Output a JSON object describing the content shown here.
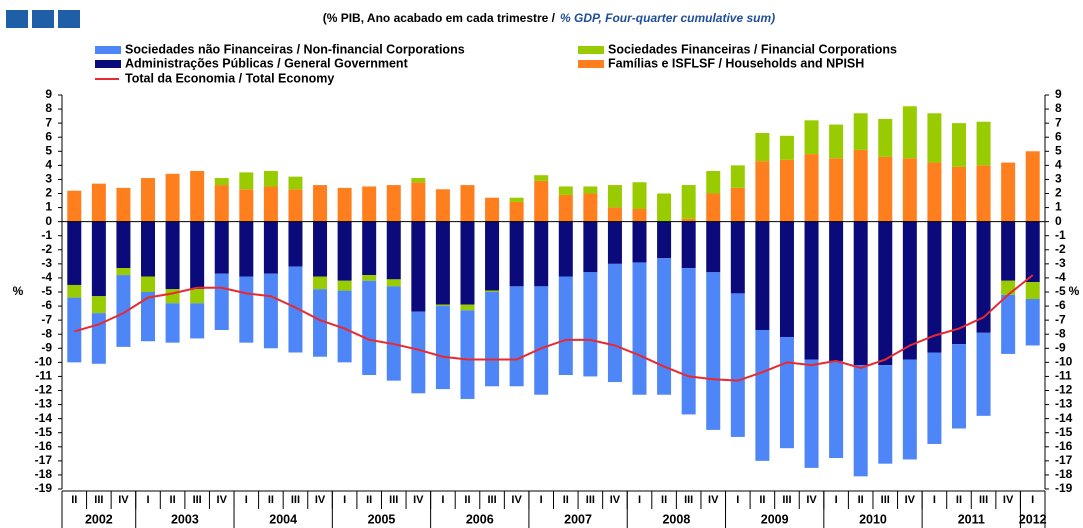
{
  "chart_data": {
    "type": "bar",
    "title": "(% PIB, Ano acabado em cada trimestre  /",
    "subtitle": "% GDP, Four-quarter cumulative sum)",
    "ylabel": "%",
    "y2label": "%",
    "categories": [
      "II",
      "III",
      "IV",
      "I",
      "II",
      "III",
      "IV",
      "I",
      "II",
      "III",
      "IV",
      "I",
      "II",
      "III",
      "IV",
      "I",
      "II",
      "III",
      "IV",
      "I",
      "II",
      "III",
      "IV",
      "I",
      "II",
      "III",
      "IV",
      "I",
      "II",
      "III",
      "IV",
      "I",
      "II",
      "III",
      "IV",
      "I",
      "II",
      "III",
      "IV",
      "I"
    ],
    "years": [
      "2002",
      "2003",
      "2004",
      "2005",
      "2006",
      "2007",
      "2008",
      "2009",
      "2010",
      "2011",
      "2012"
    ],
    "series": [
      {
        "name": "Sociedades não Financeiras / Non-financial Corporations",
        "color": "#4f86f7",
        "values": [
          -4.6,
          -3.6,
          -5.1,
          -3.5,
          -2.8,
          -2.5,
          -4.0,
          -4.7,
          -5.3,
          -6.1,
          -4.8,
          -5.1,
          -6.7,
          -6.7,
          -5.8,
          -5.9,
          -6.3,
          -6.7,
          -7.1,
          -7.7,
          -7.0,
          -7.4,
          -8.4,
          -9.4,
          -9.7,
          -10.4,
          -11.2,
          -10.2,
          -9.3,
          -7.9,
          -7.7,
          -6.9,
          -7.9,
          -7.0,
          -7.1,
          -6.5,
          -6.0,
          -5.9,
          -4.2,
          -3.3
        ]
      },
      {
        "name": "Sociedades Financeiras / Financial Corporations",
        "color": "#99cc00",
        "values": [
          -0.9,
          -1.2,
          -0.5,
          -1.1,
          -1.0,
          -1.0,
          0.5,
          1.2,
          1.1,
          0.9,
          -0.9,
          -0.7,
          -0.4,
          -0.5,
          0.3,
          -0.1,
          -0.4,
          -0.1,
          0.3,
          0.4,
          0.6,
          0.5,
          1.6,
          1.9,
          2.0,
          2.4,
          1.6,
          1.6,
          2.0,
          1.7,
          2.4,
          2.4,
          2.6,
          2.7,
          3.7,
          3.5,
          3.1,
          3.1,
          -1.0,
          -1.2
        ]
      },
      {
        "name": "Administrações Públicas / General Government",
        "color": "#0a0a7a",
        "values": [
          -4.5,
          -5.3,
          -3.3,
          -3.9,
          -4.8,
          -4.8,
          -3.7,
          -3.9,
          -3.7,
          -3.2,
          -3.9,
          -4.2,
          -3.8,
          -4.1,
          -6.4,
          -5.9,
          -5.9,
          -4.9,
          -4.6,
          -4.6,
          -3.9,
          -3.6,
          -3.0,
          -2.9,
          -2.6,
          -3.3,
          -3.6,
          -5.1,
          -7.7,
          -8.2,
          -9.8,
          -9.9,
          -10.2,
          -10.2,
          -9.8,
          -9.3,
          -8.7,
          -7.9,
          -4.2,
          -4.3
        ]
      },
      {
        "name": "Famílias e ISFLSF / Households and NPISH",
        "color": "#ff7f1f",
        "values": [
          2.2,
          2.7,
          2.4,
          3.1,
          3.4,
          3.6,
          2.6,
          2.3,
          2.5,
          2.3,
          2.6,
          2.4,
          2.5,
          2.6,
          2.8,
          2.3,
          2.6,
          1.7,
          1.4,
          2.9,
          1.9,
          2.0,
          1.0,
          0.9,
          0.0,
          0.2,
          2.0,
          2.4,
          4.3,
          4.4,
          4.8,
          4.5,
          5.1,
          4.6,
          4.5,
          4.2,
          3.9,
          4.0,
          4.2,
          5.0
        ]
      },
      {
        "name": "Total da Economia / Total Economy",
        "color": "#e8292f",
        "type": "line",
        "values": [
          -7.8,
          -7.3,
          -6.5,
          -5.4,
          -5.1,
          -4.7,
          -4.7,
          -5.1,
          -5.3,
          -6.1,
          -7.0,
          -7.6,
          -8.4,
          -8.7,
          -9.1,
          -9.6,
          -9.8,
          -9.8,
          -9.8,
          -9.0,
          -8.4,
          -8.4,
          -8.8,
          -9.5,
          -10.3,
          -11.0,
          -11.2,
          -11.3,
          -10.7,
          -10.0,
          -10.2,
          -9.9,
          -10.4,
          -9.8,
          -8.8,
          -8.1,
          -7.6,
          -6.8,
          -5.2,
          -3.8
        ]
      }
    ],
    "ylim": [
      -19,
      9
    ],
    "yticks": [
      -19,
      -18,
      -17,
      -16,
      -15,
      -14,
      -13,
      -12,
      -11,
      -10,
      -9,
      -8,
      -7,
      -6,
      -5,
      -4,
      -3,
      -2,
      -1,
      0,
      1,
      2,
      3,
      4,
      5,
      6,
      7,
      8,
      9
    ],
    "y2lim": [
      -19,
      9
    ],
    "y2ticks": [
      -19,
      -18,
      -17,
      -16,
      -15,
      -14,
      -13,
      -12,
      -11,
      -10,
      -9,
      -8,
      -7,
      -6,
      -5,
      -4,
      -3,
      -2,
      -1,
      0,
      1,
      2,
      3,
      4,
      5,
      6,
      7,
      8,
      9
    ]
  }
}
